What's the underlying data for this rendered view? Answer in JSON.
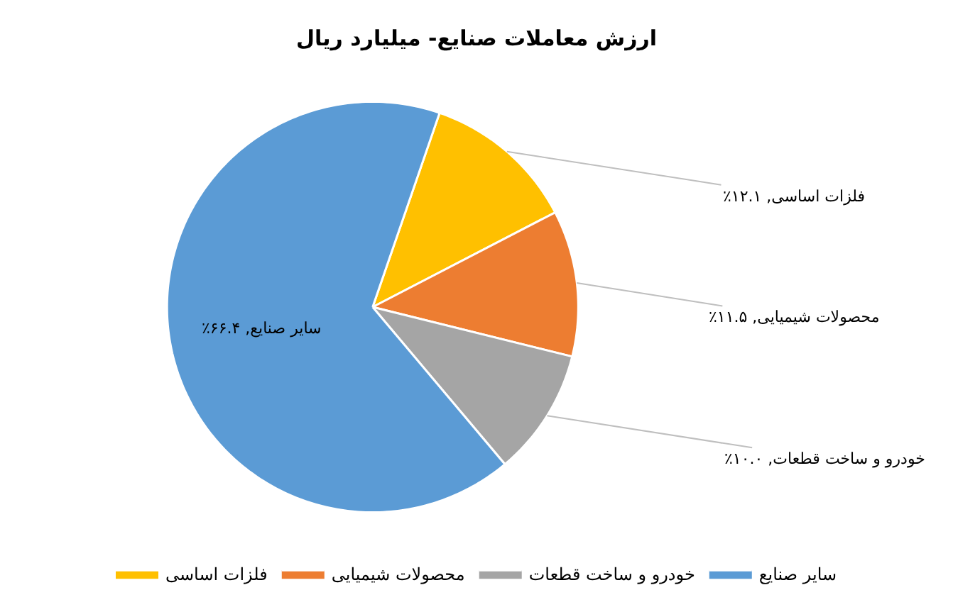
{
  "chart_data": {
    "type": "pie",
    "title": "ارزش معاملات صنایع- میلیارد ریال",
    "categories": [
      "فلزات اساسی",
      "محصولات شیمیایی",
      "خودرو و ساخت قطعات",
      "سایر صنایع"
    ],
    "values": [
      12.1,
      11.5,
      10.0,
      66.4
    ],
    "colors": [
      "#ffc000",
      "#ed7d31",
      "#a5a5a5",
      "#5b9bd5"
    ],
    "value_labels": [
      "فلزات اساسی, ۱۲.۱٪",
      "محصولات شیمیایی, ۱۱.۵٪",
      "خودرو و ساخت قطعات, ۱۰.۰٪",
      "سایر صنایع, ۶۶.۴٪"
    ],
    "legend": "bottom"
  }
}
